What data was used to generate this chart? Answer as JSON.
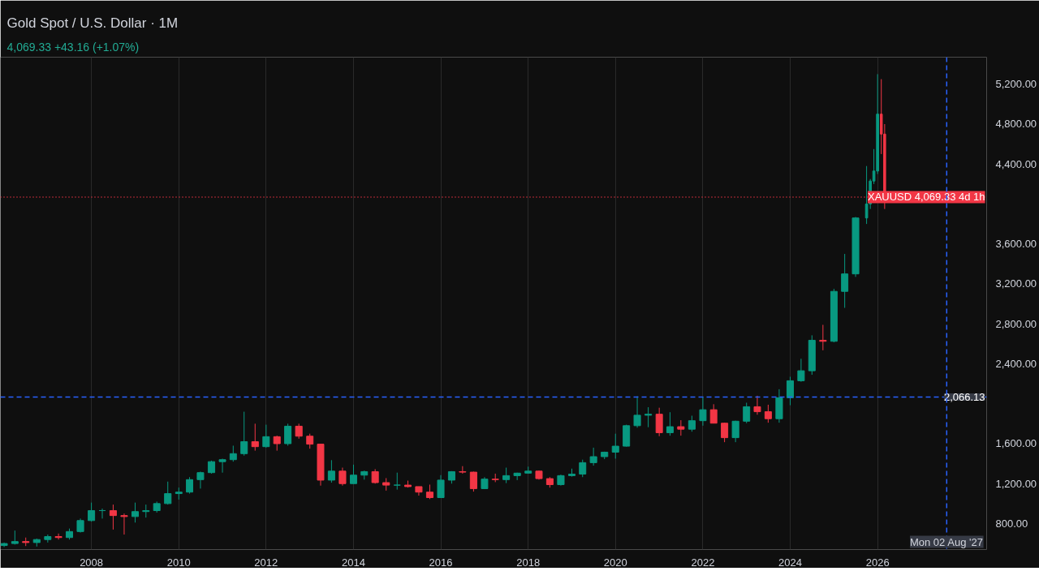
{
  "chart_data": {
    "type": "candlestick",
    "title": "Gold Spot / U.S. Dollar · 1M",
    "subtitle": "4,069.33 +43.16 (+1.07%)",
    "x": [
      "2006-01",
      "2006-04",
      "2006-07",
      "2006-10",
      "2007-01",
      "2007-04",
      "2007-07",
      "2007-10",
      "2008-01",
      "2008-04",
      "2008-07",
      "2008-10",
      "2009-01",
      "2009-04",
      "2009-07",
      "2009-10",
      "2010-01",
      "2010-04",
      "2010-07",
      "2010-10",
      "2011-01",
      "2011-04",
      "2011-07",
      "2011-10",
      "2012-01",
      "2012-04",
      "2012-07",
      "2012-10",
      "2013-01",
      "2013-04",
      "2013-07",
      "2013-10",
      "2014-01",
      "2014-04",
      "2014-07",
      "2014-10",
      "2015-01",
      "2015-04",
      "2015-07",
      "2015-10",
      "2016-01",
      "2016-04",
      "2016-07",
      "2016-10",
      "2017-01",
      "2017-04",
      "2017-07",
      "2017-10",
      "2018-01",
      "2018-04",
      "2018-07",
      "2018-10",
      "2019-01",
      "2019-04",
      "2019-07",
      "2019-10",
      "2020-01",
      "2020-04",
      "2020-07",
      "2020-10",
      "2021-01",
      "2021-04",
      "2021-07",
      "2021-10",
      "2022-01",
      "2022-04",
      "2022-07",
      "2022-10",
      "2023-01",
      "2023-04",
      "2023-07",
      "2023-10",
      "2024-01",
      "2024-04",
      "2024-07",
      "2024-10",
      "2025-01",
      "2025-04",
      "2025-07",
      "2025-10",
      "2025-11",
      "2025-12",
      "2026-01",
      "2026-02",
      "2026-03"
    ],
    "ohlc": [
      [
        580,
        610,
        565,
        600
      ],
      [
        600,
        730,
        590,
        620
      ],
      [
        620,
        660,
        575,
        610
      ],
      [
        610,
        650,
        570,
        640
      ],
      [
        640,
        690,
        610,
        670
      ],
      [
        670,
        700,
        640,
        660
      ],
      [
        660,
        750,
        640,
        720
      ],
      [
        720,
        850,
        710,
        830
      ],
      [
        830,
        1010,
        820,
        930
      ],
      [
        930,
        950,
        850,
        930
      ],
      [
        930,
        990,
        740,
        880
      ],
      [
        880,
        900,
        690,
        870
      ],
      [
        870,
        1010,
        810,
        920
      ],
      [
        920,
        990,
        860,
        930
      ],
      [
        930,
        1020,
        910,
        1000
      ],
      [
        1000,
        1220,
        990,
        1100
      ],
      [
        1100,
        1160,
        1040,
        1115
      ],
      [
        1115,
        1265,
        1100,
        1240
      ],
      [
        1240,
        1320,
        1150,
        1310
      ],
      [
        1310,
        1430,
        1300,
        1420
      ],
      [
        1420,
        1450,
        1310,
        1440
      ],
      [
        1440,
        1580,
        1420,
        1500
      ],
      [
        1500,
        1920,
        1480,
        1620
      ],
      [
        1620,
        1800,
        1530,
        1570
      ],
      [
        1570,
        1790,
        1560,
        1670
      ],
      [
        1670,
        1680,
        1530,
        1600
      ],
      [
        1600,
        1800,
        1580,
        1775
      ],
      [
        1775,
        1800,
        1650,
        1675
      ],
      [
        1675,
        1700,
        1550,
        1595
      ],
      [
        1595,
        1600,
        1180,
        1235
      ],
      [
        1235,
        1435,
        1210,
        1325
      ],
      [
        1325,
        1360,
        1180,
        1200
      ],
      [
        1200,
        1390,
        1200,
        1285
      ],
      [
        1285,
        1330,
        1240,
        1320
      ],
      [
        1320,
        1345,
        1200,
        1210
      ],
      [
        1210,
        1255,
        1130,
        1185
      ],
      [
        1185,
        1310,
        1140,
        1185
      ],
      [
        1185,
        1230,
        1160,
        1170
      ],
      [
        1170,
        1170,
        1080,
        1115
      ],
      [
        1115,
        1190,
        1045,
        1060
      ],
      [
        1060,
        1285,
        1060,
        1235
      ],
      [
        1235,
        1325,
        1200,
        1320
      ],
      [
        1320,
        1375,
        1300,
        1315
      ],
      [
        1315,
        1320,
        1120,
        1150
      ],
      [
        1150,
        1265,
        1145,
        1245
      ],
      [
        1245,
        1300,
        1215,
        1240
      ],
      [
        1240,
        1360,
        1205,
        1280
      ],
      [
        1280,
        1310,
        1235,
        1305
      ],
      [
        1305,
        1370,
        1300,
        1325
      ],
      [
        1325,
        1330,
        1240,
        1250
      ],
      [
        1250,
        1265,
        1160,
        1190
      ],
      [
        1190,
        1290,
        1180,
        1280
      ],
      [
        1280,
        1350,
        1270,
        1295
      ],
      [
        1295,
        1440,
        1265,
        1410
      ],
      [
        1410,
        1560,
        1380,
        1470
      ],
      [
        1470,
        1520,
        1445,
        1515
      ],
      [
        1515,
        1700,
        1450,
        1575
      ],
      [
        1575,
        1790,
        1570,
        1780
      ],
      [
        1780,
        2075,
        1760,
        1885
      ],
      [
        1885,
        1965,
        1765,
        1895
      ],
      [
        1895,
        1960,
        1675,
        1710
      ],
      [
        1710,
        1915,
        1680,
        1770
      ],
      [
        1770,
        1835,
        1680,
        1745
      ],
      [
        1745,
        1880,
        1720,
        1830
      ],
      [
        1830,
        2070,
        1780,
        1940
      ],
      [
        1940,
        1995,
        1805,
        1805
      ],
      [
        1805,
        1810,
        1615,
        1660
      ],
      [
        1660,
        1830,
        1615,
        1825
      ],
      [
        1825,
        2010,
        1805,
        1970
      ],
      [
        1970,
        2080,
        1890,
        1920
      ],
      [
        1920,
        1990,
        1810,
        1850
      ],
      [
        1850,
        2145,
        1810,
        2060
      ],
      [
        2060,
        2270,
        1985,
        2230
      ],
      [
        2230,
        2450,
        2220,
        2330
      ],
      [
        2330,
        2685,
        2290,
        2635
      ],
      [
        2635,
        2790,
        2535,
        2625
      ],
      [
        2625,
        3150,
        2615,
        3125
      ],
      [
        3125,
        3500,
        2960,
        3300
      ],
      [
        3300,
        3870,
        3270,
        3860
      ],
      [
        3860,
        4380,
        3800,
        4000
      ],
      [
        4000,
        4250,
        3950,
        4230
      ],
      [
        4230,
        4550,
        4200,
        4330
      ],
      [
        4330,
        5300,
        4300,
        4900
      ],
      [
        4900,
        5250,
        4500,
        4700
      ],
      [
        4700,
        4800,
        3950,
        4069.33
      ]
    ],
    "colors": [
      "#089981",
      "#089981",
      "#f23645",
      "#089981",
      "#089981",
      "#f23645",
      "#089981",
      "#089981",
      "#089981",
      "#089981",
      "#f23645",
      "#f23645",
      "#089981",
      "#089981",
      "#089981",
      "#089981",
      "#089981",
      "#089981",
      "#089981",
      "#089981",
      "#089981",
      "#089981",
      "#089981",
      "#f23645",
      "#089981",
      "#f23645",
      "#089981",
      "#f23645",
      "#f23645",
      "#f23645",
      "#089981",
      "#f23645",
      "#089981",
      "#089981",
      "#f23645",
      "#f23645",
      "#089981",
      "#f23645",
      "#f23645",
      "#f23645",
      "#089981",
      "#089981",
      "#f23645",
      "#f23645",
      "#089981",
      "#f23645",
      "#089981",
      "#089981",
      "#089981",
      "#f23645",
      "#f23645",
      "#089981",
      "#089981",
      "#089981",
      "#089981",
      "#089981",
      "#089981",
      "#089981",
      "#089981",
      "#089981",
      "#f23645",
      "#089981",
      "#f23645",
      "#089981",
      "#089981",
      "#f23645",
      "#f23645",
      "#089981",
      "#089981",
      "#f23645",
      "#f23645",
      "#089981",
      "#089981",
      "#089981",
      "#089981",
      "#f23645",
      "#089981",
      "#089981",
      "#089981",
      "#089981",
      "#089981",
      "#089981",
      "#089981",
      "#f23645",
      "#f23645"
    ],
    "xlim": [
      "2005-12",
      "2028-07"
    ],
    "xticks": [
      {
        "value": "2008",
        "label": "2008"
      },
      {
        "value": "2010",
        "label": "2010"
      },
      {
        "value": "2012",
        "label": "2012"
      },
      {
        "value": "2014",
        "label": "2014"
      },
      {
        "value": "2016",
        "label": "2016"
      },
      {
        "value": "2018",
        "label": "2018"
      },
      {
        "value": "2020",
        "label": "2020"
      },
      {
        "value": "2022",
        "label": "2022"
      },
      {
        "value": "2024",
        "label": "2024"
      },
      {
        "value": "2026",
        "label": "2026"
      }
    ],
    "ylim": [
      540,
      5470
    ],
    "yticks": [
      {
        "value": 800,
        "label": "800.00"
      },
      {
        "value": 1200,
        "label": "1,200.00"
      },
      {
        "value": 1600,
        "label": "1,600.00"
      },
      {
        "value": 2400,
        "label": "2,400.00"
      },
      {
        "value": 2800,
        "label": "2,800.00"
      },
      {
        "value": 3200,
        "label": "3,200.00"
      },
      {
        "value": 3600,
        "label": "3,600.00"
      },
      {
        "value": 4400,
        "label": "4,400.00"
      },
      {
        "value": 4800,
        "label": "4,800.00"
      },
      {
        "value": 5200,
        "label": "5,200.00"
      }
    ],
    "grid": "x",
    "ref_lines": [
      {
        "axis": "y",
        "value": 2066.13,
        "label": "2,066.13",
        "color": "#2962ff",
        "line_style": "dashed"
      },
      {
        "axis": "y",
        "value": 4069.33,
        "label": "XAUUSD 4,069.33 4d 1h",
        "color": "#f23645",
        "line_style": "dotted"
      },
      {
        "axis": "x",
        "value": "2027-08-02",
        "label": "Mon 02 Aug '27",
        "color": "#2962ff",
        "line_style": "dashed"
      }
    ]
  }
}
